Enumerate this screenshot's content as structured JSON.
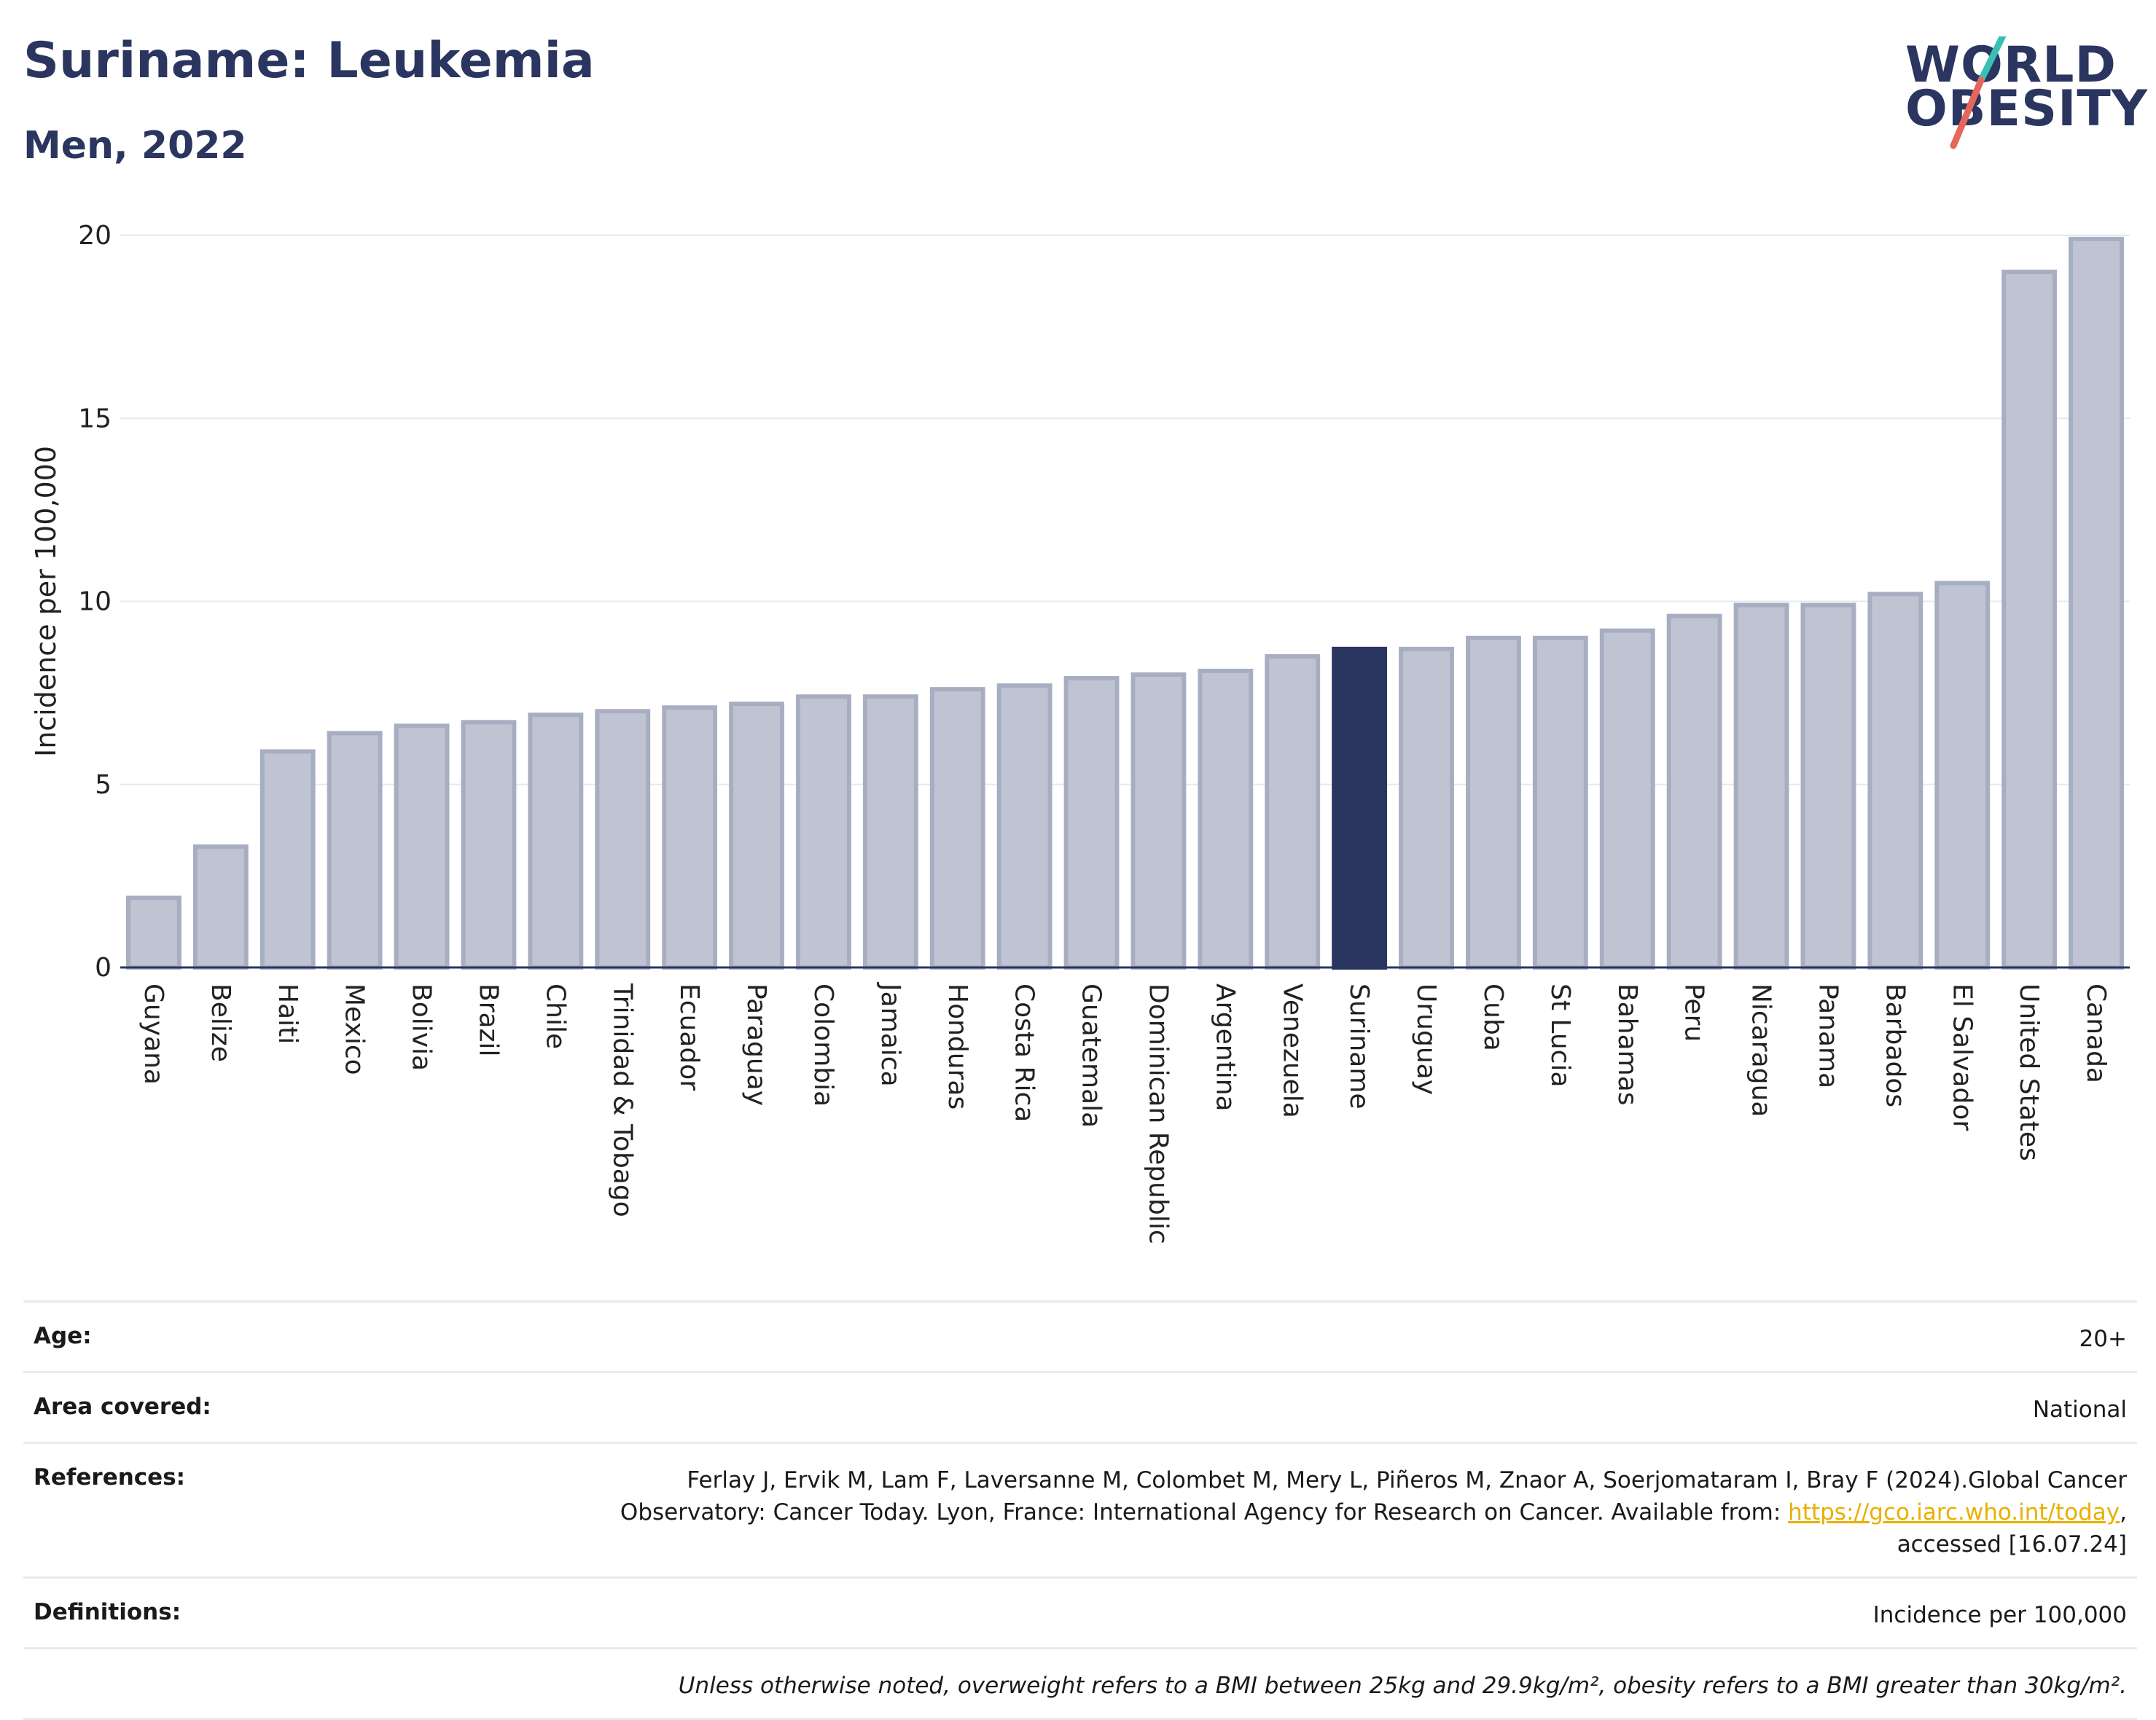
{
  "header": {
    "title": "Suriname: Leukemia",
    "subtitle": "Men, 2022"
  },
  "logo": {
    "line1": "WORLD",
    "line2": "OBESITY"
  },
  "chart_data": {
    "type": "bar",
    "ylabel": "Incidence per 100,000",
    "xlabel": "",
    "ylim": [
      0,
      20
    ],
    "yticks": [
      0,
      5,
      10,
      15,
      20
    ],
    "grid": true,
    "highlight": "Suriname",
    "colors": {
      "bar": "#c0c4d2",
      "bar_edge": "#a8aec2",
      "highlight": "#2a3560",
      "grid": "#e6e8f0",
      "axis": "#2a3560"
    },
    "categories": [
      "Guyana",
      "Belize",
      "Haiti",
      "Mexico",
      "Bolivia",
      "Brazil",
      "Chile",
      "Trinidad & Tobago",
      "Ecuador",
      "Paraguay",
      "Colombia",
      "Jamaica",
      "Honduras",
      "Costa Rica",
      "Guatemala",
      "Dominican Republic",
      "Argentina",
      "Venezuela",
      "Suriname",
      "Uruguay",
      "Cuba",
      "St Lucia",
      "Bahamas",
      "Peru",
      "Nicaragua",
      "Panama",
      "Barbados",
      "El Salvador",
      "United States",
      "Canada"
    ],
    "values": [
      1.9,
      3.3,
      5.9,
      6.4,
      6.6,
      6.7,
      6.9,
      7.0,
      7.1,
      7.2,
      7.4,
      7.4,
      7.6,
      7.7,
      7.9,
      8.0,
      8.1,
      8.5,
      8.7,
      8.7,
      9.0,
      9.0,
      9.2,
      9.6,
      9.9,
      9.9,
      10.2,
      10.5,
      19.0,
      19.9
    ]
  },
  "meta": {
    "age_label": "Age:",
    "age_value": "20+",
    "area_label": "Area covered:",
    "area_value": "National",
    "ref_label": "References:",
    "ref_text1": "Ferlay J, Ervik M, Lam F, Laversanne M, Colombet M, Mery L, Piñeros M, Znaor A, Soerjomataram I, Bray F (2024).Global Cancer",
    "ref_text2": "Observatory: Cancer Today. Lyon, France: International Agency for Research on Cancer. Available from: ",
    "ref_link": "https://gco.iarc.who.int/today",
    "ref_text3": ",",
    "ref_text4": "accessed [16.07.24]",
    "def_label": "Definitions:",
    "def_value": "Incidence per 100,000",
    "note": "Unless otherwise noted, overweight refers to a BMI between 25kg and 29.9kg/m², obesity refers to a BMI greater than 30kg/m²."
  }
}
